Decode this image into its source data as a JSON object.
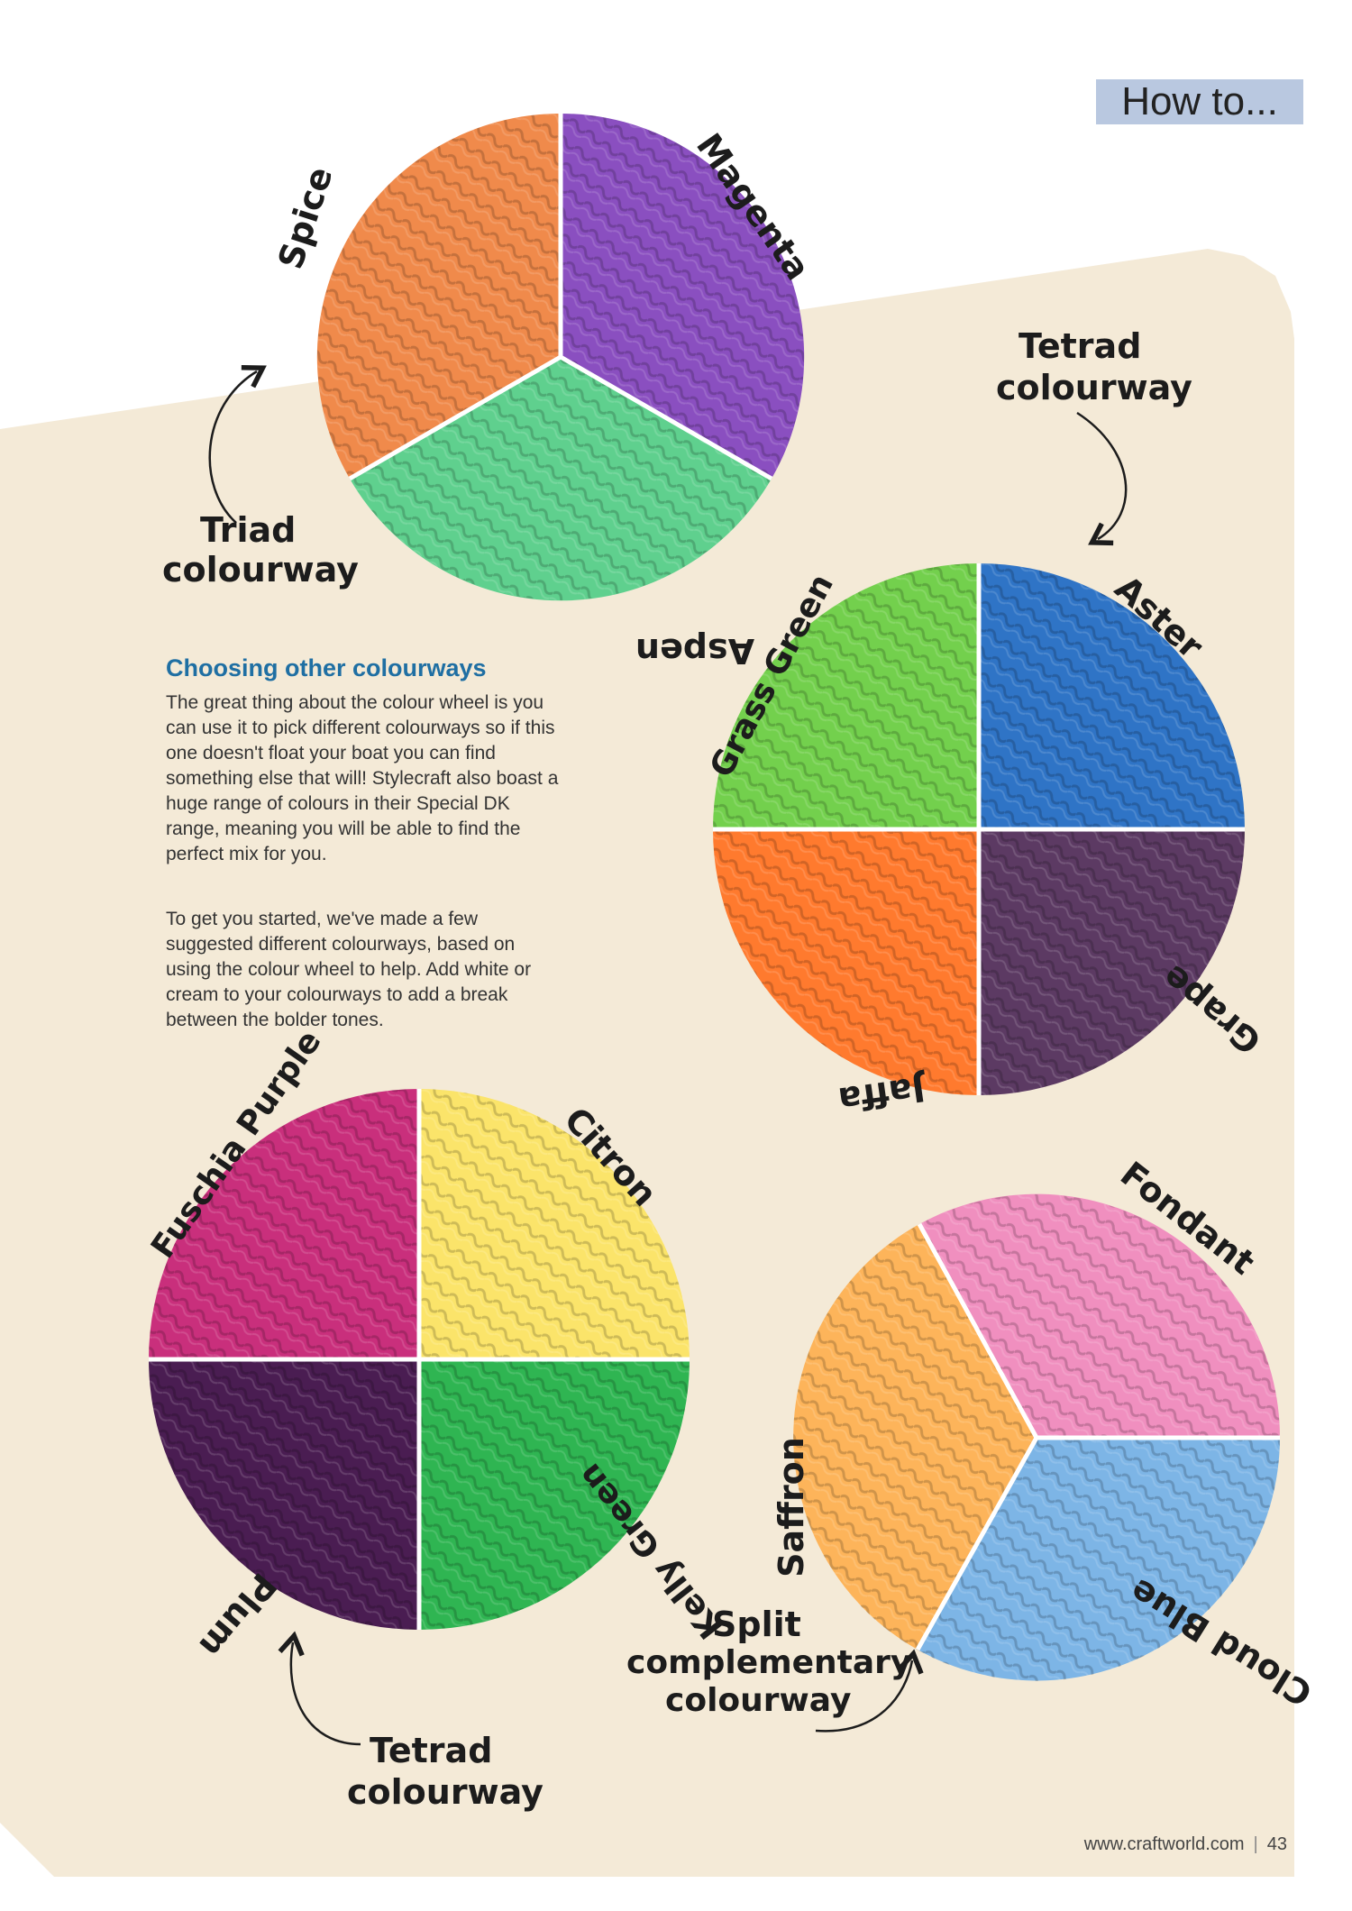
{
  "header": {
    "section": "How to..."
  },
  "article": {
    "heading": "Choosing other colourways",
    "paragraph1": "The great thing about the colour wheel is you can use it to pick different colourways so if this one doesn't float your boat you can find something else that will! Stylecraft also boast a huge range of colours in their Special DK range, meaning you will be able to find the perfect mix for you.",
    "paragraph2": "To get you started, we've made a few suggested different colourways, based on using the colour wheel to help. Add white or cream to your colourways to add a break between the bolder tones."
  },
  "wheels": {
    "triad": {
      "label_line1": "Triad",
      "label_line2": "colourway",
      "colours": [
        {
          "name": "Spice",
          "hex": "#f08a4b"
        },
        {
          "name": "Magenta",
          "hex": "#8a4fc0"
        },
        {
          "name": "Aspen",
          "hex": "#5fd08e"
        }
      ]
    },
    "tetrad1": {
      "label_line1": "Tetrad",
      "label_line2": "colourway",
      "colours": [
        {
          "name": "Grass Green",
          "hex": "#73d04d"
        },
        {
          "name": "Aster",
          "hex": "#2f74c6"
        },
        {
          "name": "Jaffa",
          "hex": "#ff7a2e"
        },
        {
          "name": "Grape",
          "hex": "#5c3a63"
        }
      ]
    },
    "tetrad2": {
      "label_line1": "Tetrad",
      "label_line2": "colourway",
      "colours": [
        {
          "name": "Fuschia Purple",
          "hex": "#c92f7c"
        },
        {
          "name": "Citron",
          "hex": "#fbe46a"
        },
        {
          "name": "Plum",
          "hex": "#4a1d52"
        },
        {
          "name": "Kelly Green",
          "hex": "#2fb552"
        }
      ]
    },
    "split": {
      "label_line1": "Split",
      "label_line2": "complementary",
      "label_line3": "colourway",
      "colours": [
        {
          "name": "Saffron",
          "hex": "#fdb45a"
        },
        {
          "name": "Fondant",
          "hex": "#f08fbf"
        },
        {
          "name": "Cloud Blue",
          "hex": "#7db5e6"
        }
      ]
    }
  },
  "footer": {
    "website": "www.craftworld.com",
    "page_number": "43"
  }
}
